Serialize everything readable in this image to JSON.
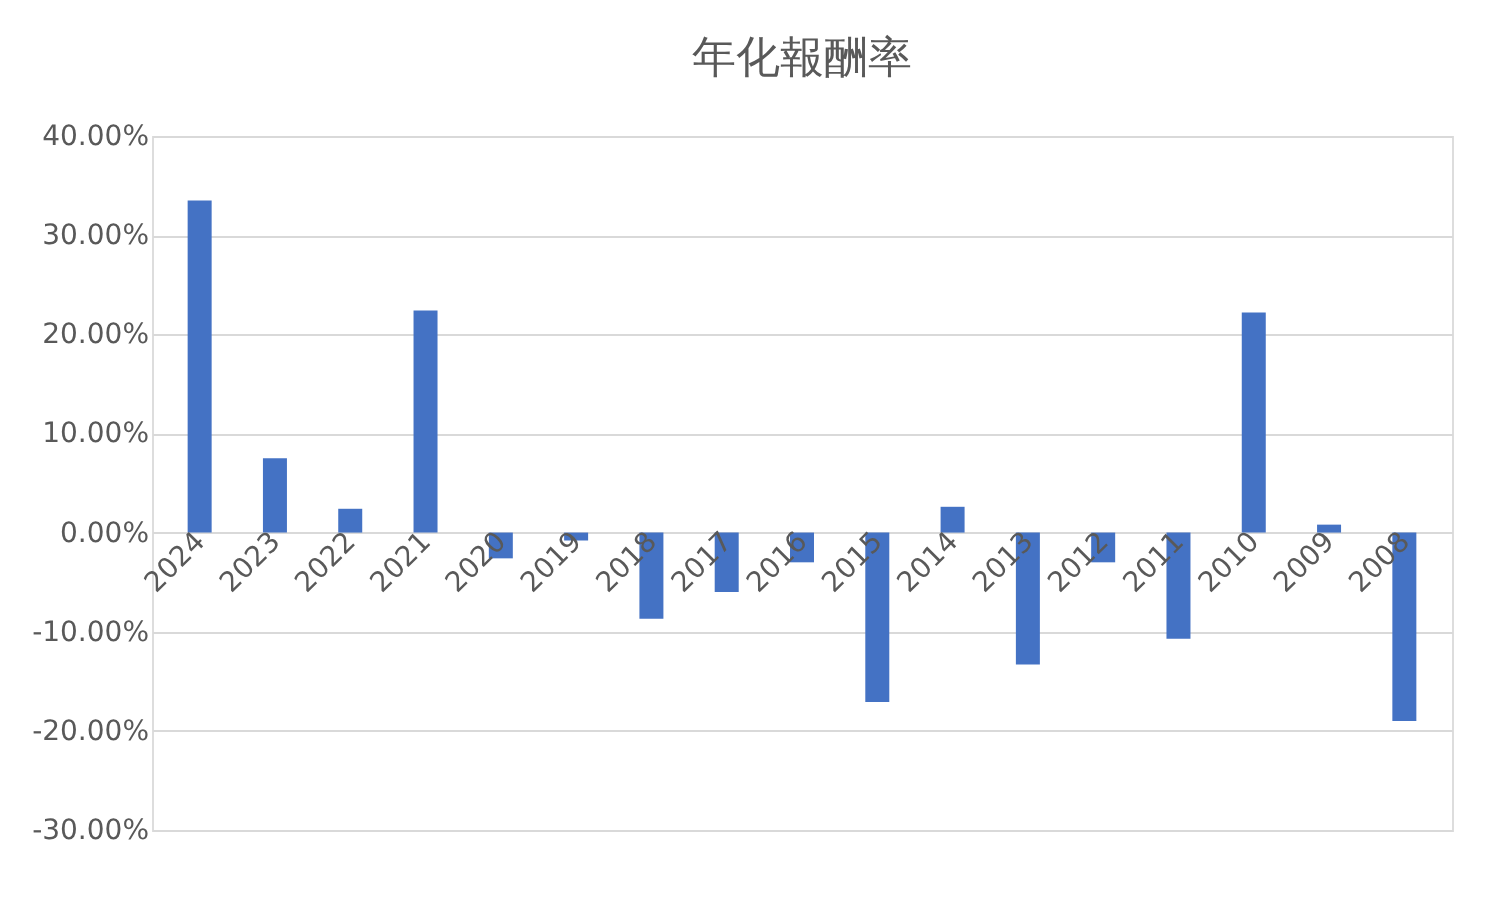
{
  "chart_data": {
    "type": "bar",
    "title": "年化報酬率",
    "categories": [
      "2024",
      "2023",
      "2022",
      "2021",
      "2020",
      "2019",
      "2018",
      "2017",
      "2016",
      "2015",
      "2014",
      "2013",
      "2012",
      "2011",
      "2010",
      "2009",
      "2008"
    ],
    "values": [
      33.5,
      7.5,
      2.4,
      22.4,
      -2.6,
      -0.8,
      -8.7,
      -6.0,
      -3.0,
      -17.1,
      2.6,
      -13.3,
      -3.0,
      -10.7,
      22.2,
      0.8,
      -19.0
    ],
    "color": "#4472c4",
    "ylim": [
      -30,
      40
    ],
    "yticks": [
      {
        "value": -30,
        "label": "-30.00%"
      },
      {
        "value": -20,
        "label": "-20.00%"
      },
      {
        "value": -10,
        "label": "-10.00%"
      },
      {
        "value": 0,
        "label": "0.00%"
      },
      {
        "value": 10,
        "label": "10.00%"
      },
      {
        "value": 20,
        "label": "20.00%"
      },
      {
        "value": 30,
        "label": "30.00%"
      },
      {
        "value": 40,
        "label": "40.00%"
      }
    ],
    "grid": "y"
  }
}
